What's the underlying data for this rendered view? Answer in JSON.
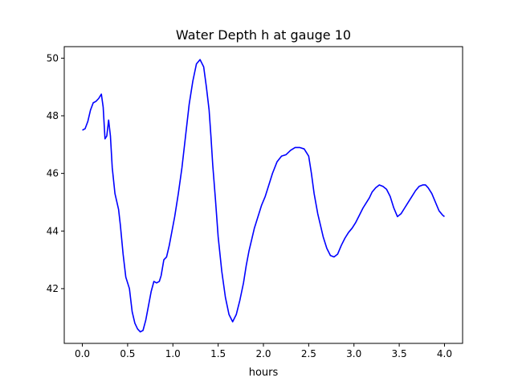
{
  "chart_data": {
    "type": "line",
    "title": "Water Depth h at gauge 10",
    "xlabel": "hours",
    "ylabel": "",
    "xlim": [
      -0.2,
      4.2
    ],
    "ylim": [
      40.1,
      50.4
    ],
    "xticks": [
      0.0,
      0.5,
      1.0,
      1.5,
      2.0,
      2.5,
      3.0,
      3.5,
      4.0
    ],
    "xtick_labels": [
      "0.0",
      "0.5",
      "1.0",
      "1.5",
      "2.0",
      "2.5",
      "3.0",
      "3.5",
      "4.0"
    ],
    "yticks": [
      42,
      44,
      46,
      48,
      50
    ],
    "ytick_labels": [
      "42",
      "44",
      "46",
      "48",
      "50"
    ],
    "grid": false,
    "series": [
      {
        "color": "#0000ff",
        "x": [
          0.0,
          0.03,
          0.06,
          0.09,
          0.12,
          0.15,
          0.18,
          0.21,
          0.23,
          0.25,
          0.27,
          0.29,
          0.31,
          0.33,
          0.36,
          0.4,
          0.42,
          0.45,
          0.48,
          0.52,
          0.55,
          0.58,
          0.61,
          0.64,
          0.67,
          0.7,
          0.73,
          0.76,
          0.79,
          0.82,
          0.85,
          0.87,
          0.9,
          0.93,
          0.96,
          0.99,
          1.02,
          1.06,
          1.1,
          1.14,
          1.18,
          1.22,
          1.26,
          1.3,
          1.34,
          1.37,
          1.4,
          1.42,
          1.44,
          1.47,
          1.5,
          1.54,
          1.58,
          1.62,
          1.66,
          1.7,
          1.74,
          1.78,
          1.81,
          1.84,
          1.87,
          1.9,
          1.94,
          1.98,
          2.02,
          2.06,
          2.1,
          2.15,
          2.2,
          2.25,
          2.3,
          2.35,
          2.4,
          2.45,
          2.5,
          2.53,
          2.56,
          2.6,
          2.63,
          2.66,
          2.7,
          2.74,
          2.78,
          2.82,
          2.86,
          2.9,
          2.94,
          2.98,
          3.02,
          3.06,
          3.1,
          3.14,
          3.17,
          3.2,
          3.24,
          3.28,
          3.32,
          3.36,
          3.4,
          3.44,
          3.48,
          3.52,
          3.56,
          3.6,
          3.64,
          3.68,
          3.72,
          3.76,
          3.79,
          3.82,
          3.86,
          3.9,
          3.94,
          3.98,
          4.0
        ],
        "y": [
          47.5,
          47.55,
          47.8,
          48.2,
          48.45,
          48.5,
          48.6,
          48.75,
          48.3,
          47.2,
          47.3,
          47.85,
          47.3,
          46.2,
          45.3,
          44.75,
          44.2,
          43.2,
          42.4,
          42.0,
          41.2,
          40.8,
          40.6,
          40.5,
          40.55,
          40.9,
          41.4,
          41.9,
          42.25,
          42.2,
          42.25,
          42.45,
          43.0,
          43.1,
          43.5,
          44.0,
          44.5,
          45.3,
          46.2,
          47.3,
          48.4,
          49.2,
          49.8,
          49.95,
          49.7,
          49.0,
          48.2,
          47.3,
          46.3,
          45.1,
          43.8,
          42.6,
          41.7,
          41.1,
          40.85,
          41.1,
          41.6,
          42.2,
          42.8,
          43.3,
          43.7,
          44.1,
          44.5,
          44.9,
          45.2,
          45.6,
          46.0,
          46.4,
          46.6,
          46.65,
          46.8,
          46.9,
          46.9,
          46.85,
          46.6,
          46.0,
          45.3,
          44.6,
          44.2,
          43.8,
          43.4,
          43.15,
          43.1,
          43.2,
          43.5,
          43.75,
          43.95,
          44.1,
          44.3,
          44.55,
          44.8,
          45.0,
          45.15,
          45.35,
          45.5,
          45.6,
          45.55,
          45.45,
          45.2,
          44.8,
          44.5,
          44.6,
          44.8,
          45.0,
          45.2,
          45.4,
          45.55,
          45.6,
          45.6,
          45.5,
          45.3,
          45.0,
          44.7,
          44.55,
          44.5
        ]
      }
    ]
  }
}
